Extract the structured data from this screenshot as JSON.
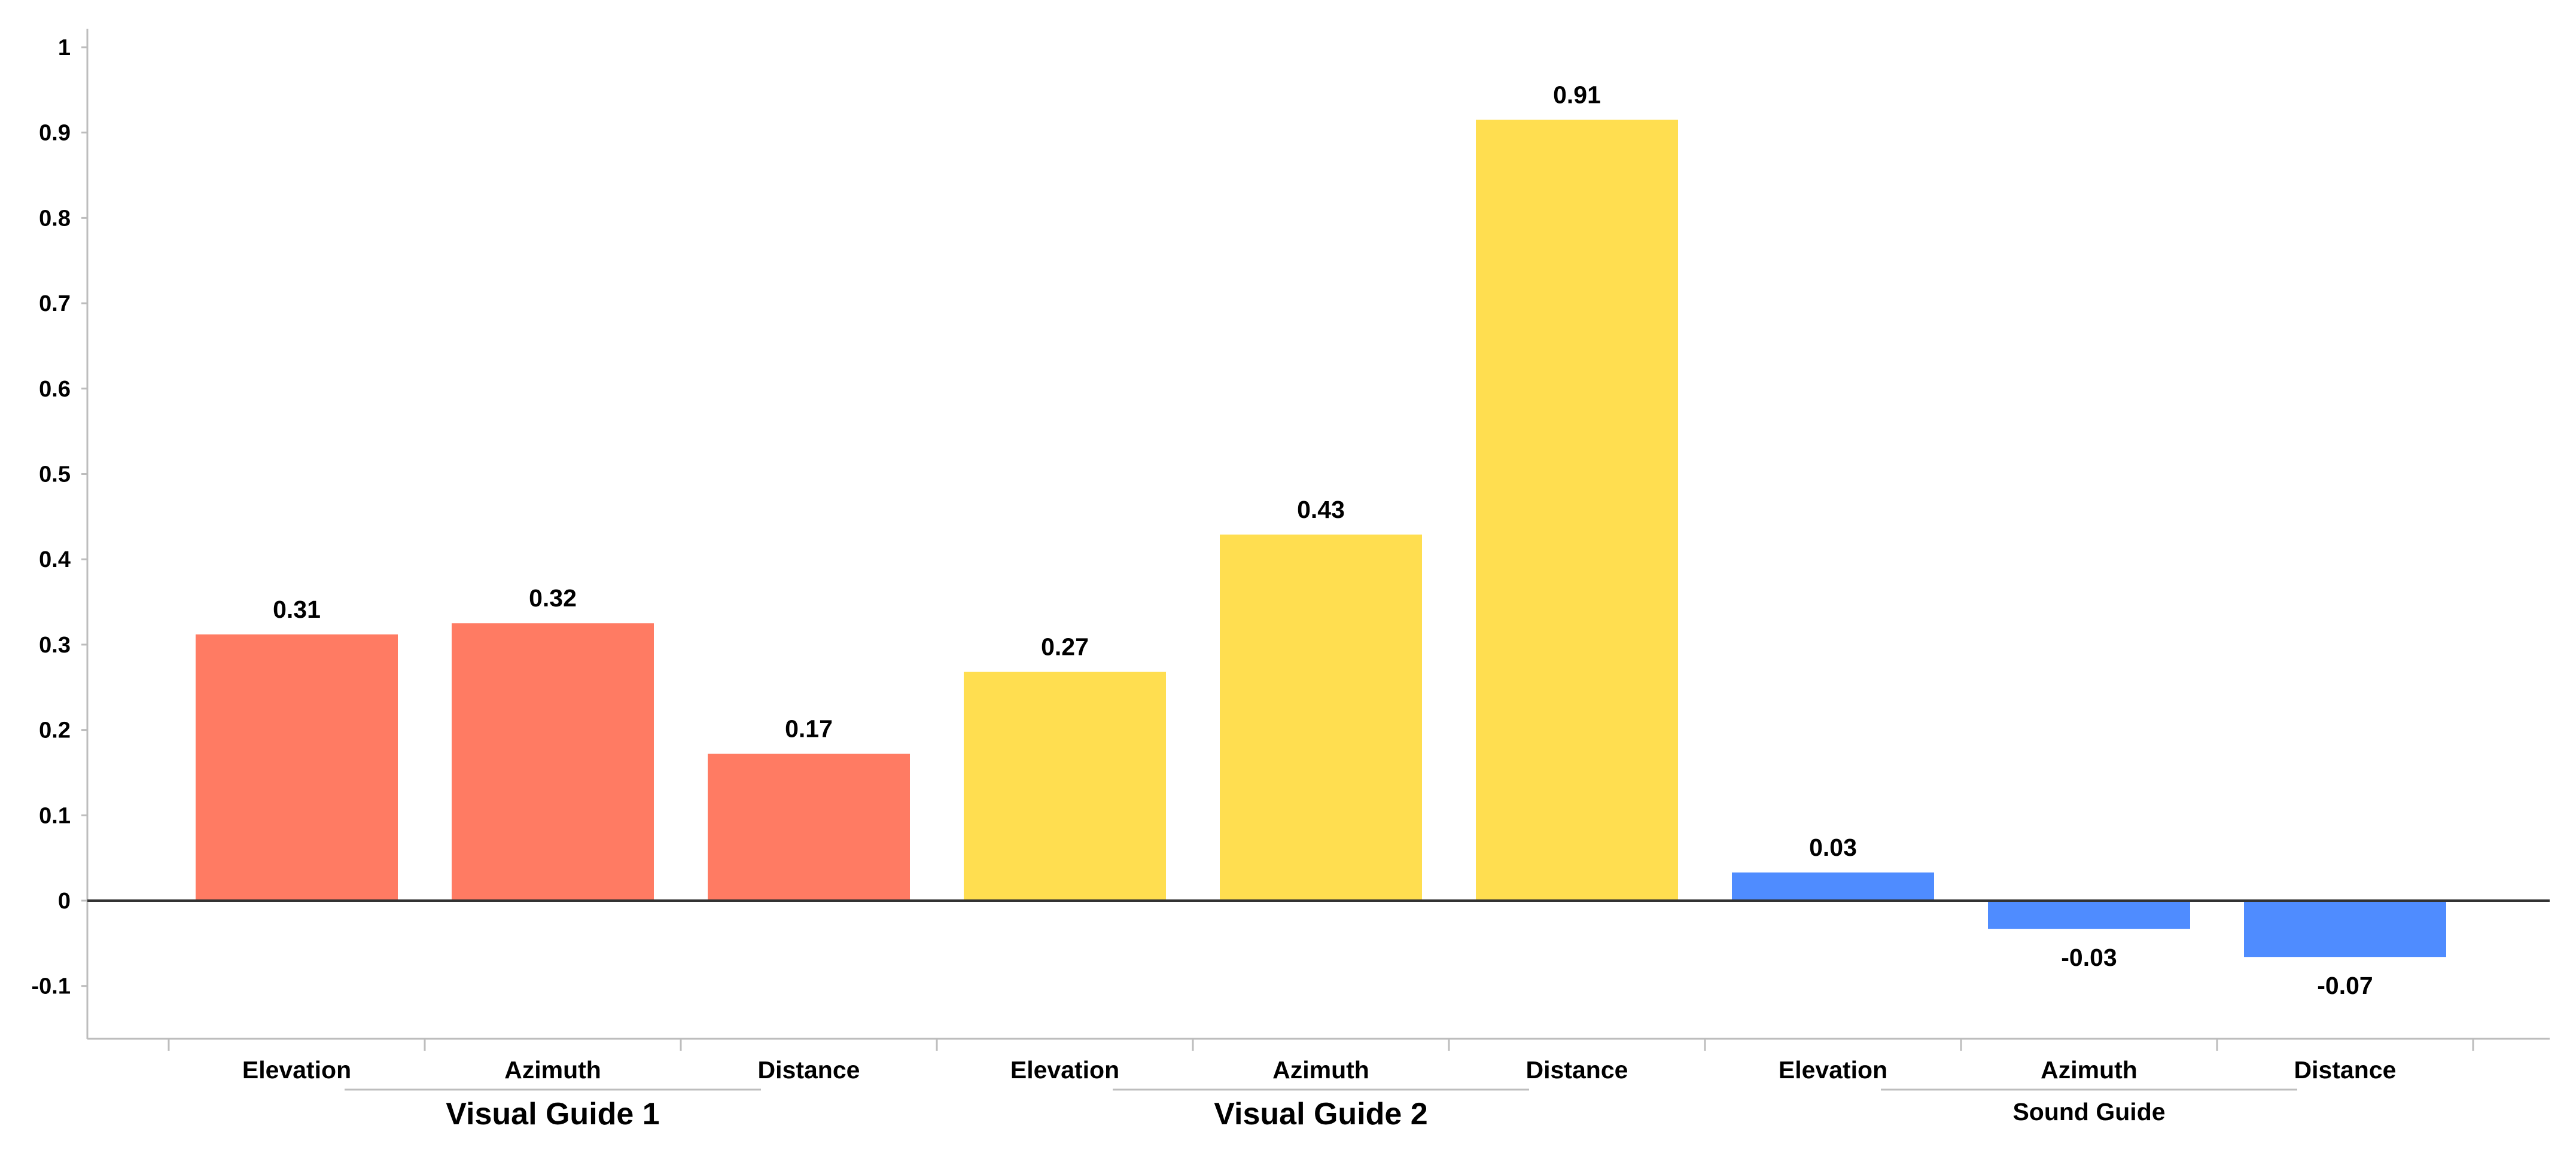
{
  "chart_data": {
    "type": "bar",
    "title": "",
    "xlabel": "",
    "ylabel": "",
    "ylim": [
      -0.16,
      1.0
    ],
    "yticks": [
      1,
      0.9,
      0.8,
      0.7,
      0.6,
      0.5,
      0.4,
      0.3,
      0.2,
      0.1,
      0,
      -0.1
    ],
    "ytick_labels": [
      "1",
      "0.9",
      "0.8",
      "0.7",
      "0.6",
      "0.5",
      "0.4",
      "0.3",
      "0.2",
      "0.1",
      "0",
      "-0.1"
    ],
    "grid": false,
    "legend": "none",
    "groups": [
      {
        "name": "Visual Guide 1",
        "color": "#FF7B63",
        "categories": [
          "Elevation",
          "Azimuth",
          "Distance"
        ],
        "values": [
          0.312,
          0.325,
          0.172
        ],
        "labels": [
          "0.31",
          "0.32",
          "0.17"
        ]
      },
      {
        "name": "Visual Guide 2",
        "color": "#FFDE50",
        "categories": [
          "Elevation",
          "Azimuth",
          "Distance"
        ],
        "values": [
          0.268,
          0.429,
          0.915
        ],
        "labels": [
          "0.27",
          "0.43",
          "0.91"
        ]
      },
      {
        "name": "Sound Guide",
        "color": "#4F8CFF",
        "categories": [
          "Elevation",
          "Azimuth",
          "Distance"
        ],
        "values": [
          0.033,
          -0.033,
          -0.066
        ],
        "labels": [
          "0.03",
          "-0.03",
          "-0.07"
        ]
      }
    ]
  }
}
